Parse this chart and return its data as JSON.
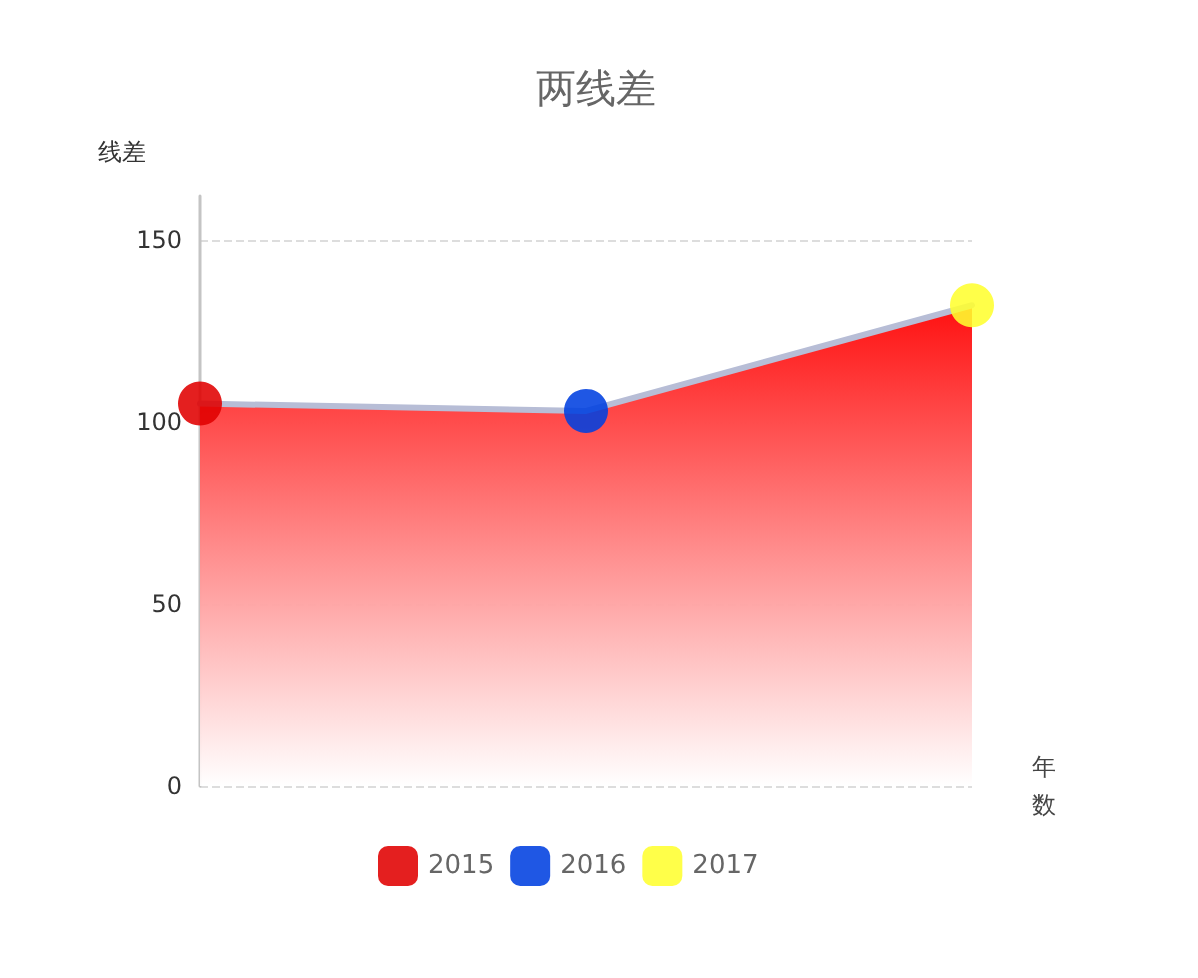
{
  "chart_data": {
    "type": "area",
    "title": "两线差",
    "xlabel": "年数",
    "ylabel": "线差",
    "categories": [
      null,
      null,
      null
    ],
    "ylim": [
      0,
      162
    ],
    "yticks": [
      0,
      50,
      100,
      150
    ],
    "grid": "y",
    "legend": "bottom",
    "series": [
      {
        "color": "#ff1010",
        "values": [
          105,
          103,
          132
        ]
      },
      {
        "type": "scatter",
        "name": "2015",
        "color": "#e00000",
        "marker": "circle",
        "values": [
          105,
          null,
          null
        ]
      },
      {
        "type": "scatter",
        "name": "2016",
        "color": "#0040e0",
        "marker": "circle",
        "values": [
          null,
          103,
          null
        ]
      },
      {
        "type": "scatter",
        "name": "2017",
        "color": "#ffff30",
        "marker": "circle",
        "values": [
          null,
          null,
          132
        ]
      }
    ]
  }
}
